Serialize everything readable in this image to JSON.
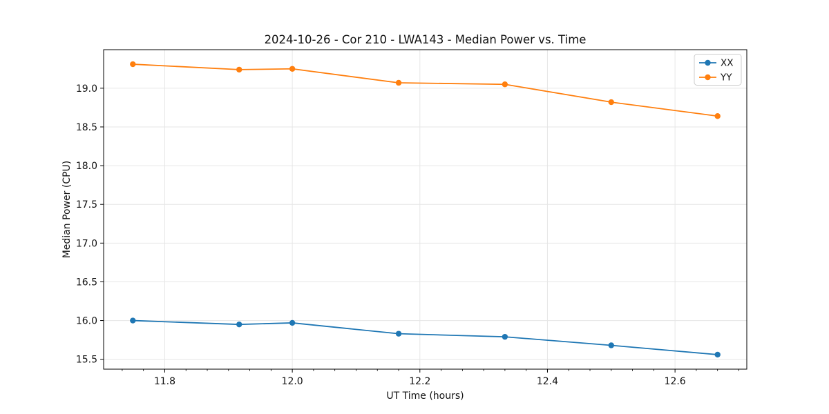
{
  "chart_data": {
    "type": "line",
    "title": "2024-10-26 - Cor 210 - LWA143 - Median Power vs. Time",
    "xlabel": "UT Time (hours)",
    "ylabel": "Median Power (CPU)",
    "x": [
      11.75,
      11.9167,
      12.0,
      12.1667,
      12.3333,
      12.5,
      12.6667
    ],
    "series": [
      {
        "name": "XX",
        "color": "#1f77b4",
        "values": [
          16.0,
          15.95,
          15.97,
          15.83,
          15.79,
          15.68,
          15.56
        ]
      },
      {
        "name": "YY",
        "color": "#ff7f0e",
        "values": [
          19.31,
          19.24,
          19.25,
          19.07,
          19.05,
          18.82,
          18.64
        ]
      }
    ],
    "xlim": [
      11.7042,
      12.7125
    ],
    "ylim": [
      15.3725,
      19.4975
    ],
    "x_ticks": [
      11.8,
      12.0,
      12.2,
      12.4,
      12.6
    ],
    "x_tick_labels": [
      "11.8",
      "12.0",
      "12.2",
      "12.4",
      "12.6"
    ],
    "x_minor_divisions": 6,
    "y_ticks": [
      15.5,
      16.0,
      16.5,
      17.0,
      17.5,
      18.0,
      18.5,
      19.0
    ],
    "y_tick_labels": [
      "15.5",
      "16.0",
      "16.5",
      "17.0",
      "17.5",
      "18.0",
      "18.5",
      "19.0"
    ],
    "grid": true,
    "grid_color": "#e6e6e6",
    "legend_position": "upper right",
    "marker": "o",
    "spine_color": "#000000",
    "background_color": "#ffffff"
  }
}
